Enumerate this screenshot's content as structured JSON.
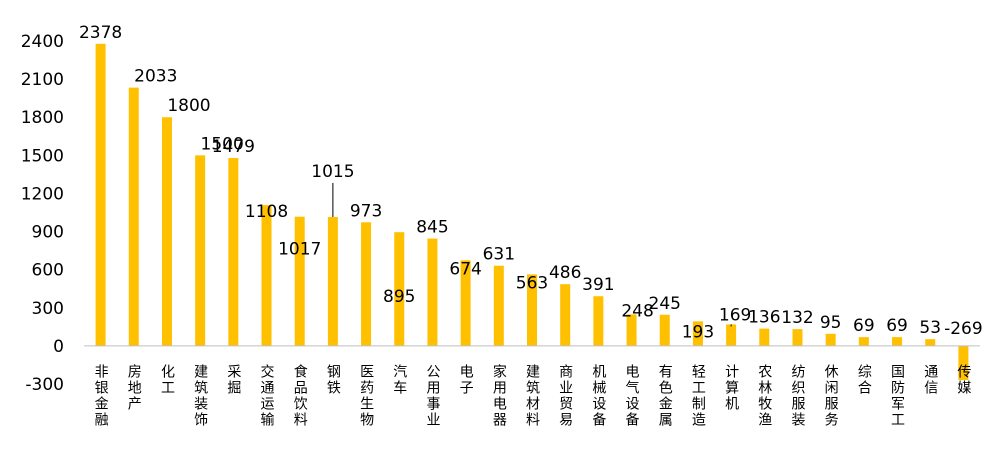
{
  "chart_data": {
    "type": "bar",
    "title": "",
    "xlabel": "",
    "ylabel": "",
    "ylim": [
      -300,
      2400
    ],
    "yticks": [
      2400,
      2100,
      1800,
      1500,
      1200,
      900,
      600,
      300,
      0,
      -300
    ],
    "grid": false,
    "legend": "none",
    "bar_color": "#FFC000",
    "categories": [
      "非银金融",
      "房地产",
      "化工",
      "建筑装饰",
      "采掘",
      "交通运输",
      "食品饮料",
      "钢铁",
      "医药生物",
      "汽车",
      "公用事业",
      "电子",
      "家用电器",
      "建筑材料",
      "商业贸易",
      "机械设备",
      "电气设备",
      "有色金属",
      "轻工制造",
      "计算机",
      "农林牧渔",
      "纺织服装",
      "休闲服务",
      "综合",
      "国防军工",
      "通信",
      "传媒"
    ],
    "values": [
      2378,
      2033,
      1800,
      1500,
      1479,
      1108,
      1017,
      1015,
      973,
      895,
      845,
      674,
      631,
      563,
      486,
      391,
      248,
      245,
      193,
      169,
      136,
      132,
      95,
      69,
      69,
      53,
      -269
    ],
    "data_labels": [
      "2378",
      "2033",
      "1800",
      "1500",
      "1479",
      "1108",
      "1017",
      "1015",
      "973",
      "895",
      "845",
      "674",
      "631",
      "563",
      "486",
      "391",
      "248",
      "245",
      "193",
      "169",
      "136",
      "132",
      "95",
      "69",
      "69",
      "53",
      "-269"
    ]
  }
}
